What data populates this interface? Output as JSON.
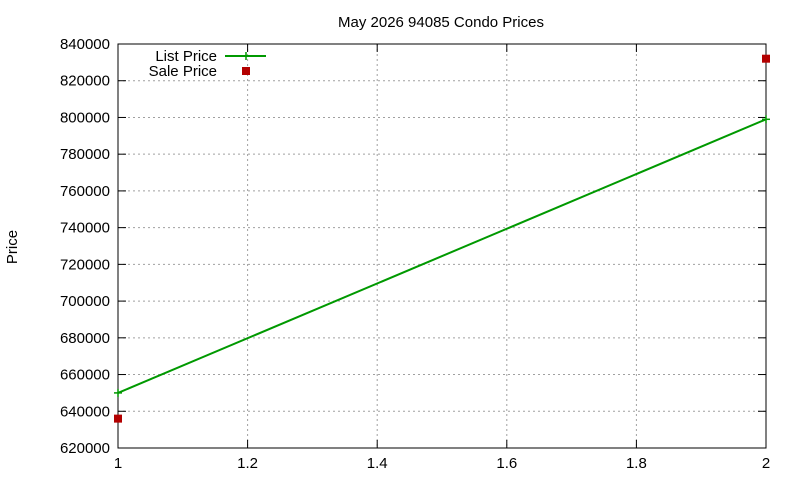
{
  "chart_data": {
    "type": "line",
    "title": "May 2026 94085 Condo Prices",
    "xlabel": "",
    "ylabel": "Price",
    "xlim": [
      1,
      2
    ],
    "ylim": [
      620000,
      840000
    ],
    "x_ticks": [
      1,
      1.2,
      1.4,
      1.6,
      1.8,
      2
    ],
    "x_tick_labels": [
      "1",
      "1.2",
      "1.4",
      "1.6",
      "1.8",
      "2"
    ],
    "y_ticks": [
      620000,
      640000,
      660000,
      680000,
      700000,
      720000,
      740000,
      760000,
      780000,
      800000,
      820000,
      840000
    ],
    "y_tick_labels": [
      "620000",
      "640000",
      "660000",
      "680000",
      "700000",
      "720000",
      "740000",
      "760000",
      "780000",
      "800000",
      "820000",
      "840000"
    ],
    "grid": true,
    "legend_position": "top-left",
    "series": [
      {
        "name": "List Price",
        "style": "linespoints",
        "marker": "plus",
        "color": "#009900",
        "points": [
          [
            1,
            650000
          ],
          [
            2,
            799000
          ]
        ]
      },
      {
        "name": "Sale Price",
        "style": "points",
        "marker": "square",
        "color": "#b30000",
        "points": [
          [
            1,
            636000
          ],
          [
            2,
            832000
          ]
        ]
      }
    ]
  }
}
